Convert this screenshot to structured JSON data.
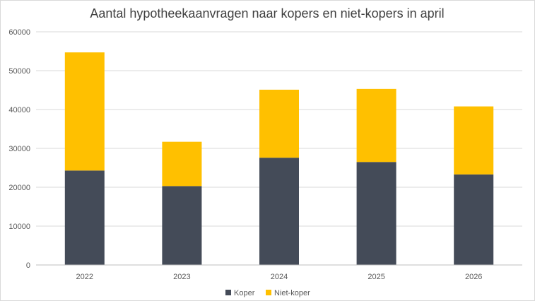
{
  "chart_data": {
    "type": "bar",
    "stacked": true,
    "title": "Aantal hypotheekaanvragen naar kopers en niet-kopers in april",
    "xlabel": "",
    "ylabel": "",
    "categories": [
      "2022",
      "2023",
      "2024",
      "2025",
      "2026"
    ],
    "series": [
      {
        "name": "Koper",
        "color": "#444b58",
        "values": [
          24300,
          20300,
          27600,
          26500,
          23300
        ]
      },
      {
        "name": "Niet-koper",
        "color": "#ffc000",
        "values": [
          30400,
          11400,
          17500,
          18800,
          17500
        ]
      }
    ],
    "ylim": [
      0,
      60000
    ],
    "yticks": [
      0,
      10000,
      20000,
      30000,
      40000,
      50000,
      60000
    ],
    "ytick_labels": [
      "0",
      "10000",
      "20000",
      "30000",
      "40000",
      "50000",
      "60000"
    ],
    "grid": true,
    "legend_position": "bottom"
  }
}
